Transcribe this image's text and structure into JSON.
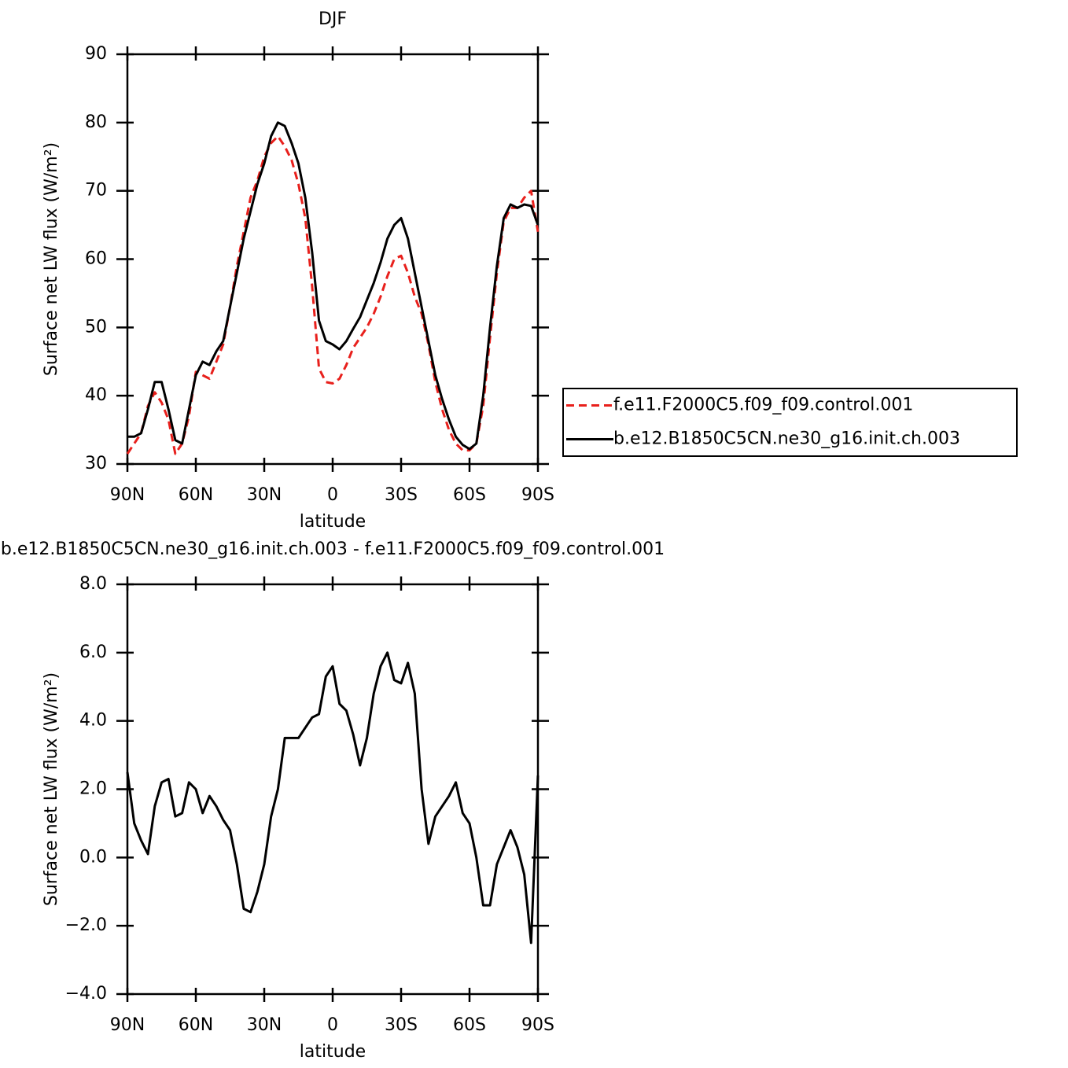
{
  "chart_data": [
    {
      "type": "line",
      "title": "DJF",
      "xlabel": "latitude",
      "ylabel": "Surface net LW flux (W/m²)",
      "x": [
        90,
        87,
        84,
        81,
        78,
        75,
        72,
        69,
        66,
        63,
        60,
        57,
        54,
        51,
        48,
        45,
        42,
        39,
        36,
        33,
        30,
        27,
        24,
        21,
        18,
        15,
        12,
        9,
        6,
        3,
        0,
        -3,
        -6,
        -9,
        -12,
        -15,
        -18,
        -21,
        -24,
        -27,
        -30,
        -33,
        -36,
        -39,
        -42,
        -45,
        -48,
        -51,
        -54,
        -57,
        -60,
        -63,
        -66,
        -69,
        -72,
        -75,
        -78,
        -81,
        -84,
        -87,
        -90
      ],
      "series": [
        {
          "name": "f.e11.F2000C5.f09_f09.control.001",
          "color": "#e8201c",
          "dash": true,
          "values": [
            31.5,
            33,
            34.5,
            38.5,
            40.5,
            39,
            36.5,
            31.5,
            33,
            37,
            43.5,
            43,
            42.5,
            45,
            47.5,
            53,
            59,
            64,
            69,
            71.5,
            75,
            77,
            78,
            76.5,
            74.5,
            71,
            66,
            56,
            44,
            42,
            41.8,
            42.5,
            44.5,
            47,
            48.5,
            50,
            52,
            54.5,
            57.5,
            60,
            60.5,
            58,
            54.5,
            52,
            47.5,
            42,
            38,
            35,
            33,
            32,
            32,
            33,
            38.5,
            48.5,
            58,
            65.5,
            67.5,
            67.5,
            69,
            70,
            64
          ]
        },
        {
          "name": "b.e12.B1850C5CN.ne30_g16.init.ch.003",
          "color": "#000000",
          "dash": false,
          "values": [
            34,
            34,
            34.5,
            38,
            42,
            42,
            38,
            33.5,
            33,
            38,
            43,
            45,
            44.5,
            46.5,
            48,
            53,
            58,
            63,
            67,
            71,
            74,
            78,
            80,
            79.5,
            77,
            74,
            69,
            61,
            51,
            48,
            47.5,
            46.8,
            48,
            49.8,
            51.5,
            54,
            56.5,
            59.5,
            63,
            65,
            66,
            63,
            58,
            53,
            48,
            43,
            39.5,
            36.5,
            34,
            32.8,
            32.2,
            33,
            40,
            50,
            59,
            66,
            68,
            67.5,
            68,
            67.8,
            65
          ]
        }
      ],
      "xlim": [
        90,
        -90
      ],
      "ylim": [
        30,
        90
      ],
      "xticks": [
        {
          "value": 90,
          "label": "90N"
        },
        {
          "value": 60,
          "label": "60N"
        },
        {
          "value": 30,
          "label": "30N"
        },
        0,
        {
          "value": -30,
          "label": "30S"
        },
        {
          "value": -60,
          "label": "60S"
        },
        {
          "value": -90,
          "label": "90S"
        }
      ],
      "yticks": [
        30,
        40,
        50,
        60,
        70,
        80,
        90
      ],
      "legend": "right"
    },
    {
      "type": "line",
      "title": "b.e12.B1850C5CN.ne30_g16.init.ch.003 - f.e11.F2000C5.f09_f09.control.001",
      "xlabel": "latitude",
      "ylabel": "Surface net LW flux (W/m²)",
      "x": [
        90,
        87,
        84,
        81,
        78,
        75,
        72,
        69,
        66,
        63,
        60,
        57,
        54,
        51,
        48,
        45,
        42,
        39,
        36,
        33,
        30,
        27,
        24,
        21,
        18,
        15,
        12,
        9,
        6,
        3,
        0,
        -3,
        -6,
        -9,
        -12,
        -15,
        -18,
        -21,
        -24,
        -27,
        -30,
        -33,
        -36,
        -39,
        -42,
        -45,
        -48,
        -51,
        -54,
        -57,
        -60,
        -63,
        -66,
        -69,
        -72,
        -75,
        -78,
        -81,
        -84,
        -87,
        -90
      ],
      "series": [
        {
          "color": "#000000",
          "dash": false,
          "values": [
            2.5,
            1.0,
            0.5,
            0.1,
            1.5,
            2.2,
            2.3,
            1.2,
            1.3,
            2.2,
            2.0,
            1.3,
            1.8,
            1.5,
            1.1,
            0.8,
            -0.2,
            -1.5,
            -1.6,
            -1.0,
            -0.2,
            1.2,
            2.0,
            3.5,
            3.5,
            3.5,
            3.8,
            4.1,
            4.2,
            5.3,
            5.6,
            4.5,
            4.3,
            3.6,
            2.7,
            3.5,
            4.8,
            5.6,
            6.0,
            5.2,
            5.1,
            5.7,
            4.8,
            2.0,
            0.4,
            1.2,
            1.5,
            1.8,
            2.2,
            1.3,
            1.0,
            0.0,
            -1.4,
            -1.4,
            -0.2,
            0.3,
            0.8,
            0.3,
            -0.5,
            -2.5,
            2.4
          ]
        }
      ],
      "xlim": [
        90,
        -90
      ],
      "ylim": [
        -4,
        8
      ],
      "xticks": [
        {
          "value": 90,
          "label": "90N"
        },
        {
          "value": 60,
          "label": "60N"
        },
        {
          "value": 30,
          "label": "30N"
        },
        0,
        {
          "value": -30,
          "label": "30S"
        },
        {
          "value": -60,
          "label": "60S"
        },
        {
          "value": -90,
          "label": "90S"
        }
      ],
      "yticks": [
        {
          "value": -4,
          "label": "−4.0"
        },
        {
          "value": -2,
          "label": "−2.0"
        },
        {
          "value": 0,
          "label": "0.0"
        },
        {
          "value": 2,
          "label": "2.0"
        },
        {
          "value": 4,
          "label": "4.0"
        },
        {
          "value": 6,
          "label": "6.0"
        },
        {
          "value": 8,
          "label": "8.0"
        }
      ]
    }
  ]
}
